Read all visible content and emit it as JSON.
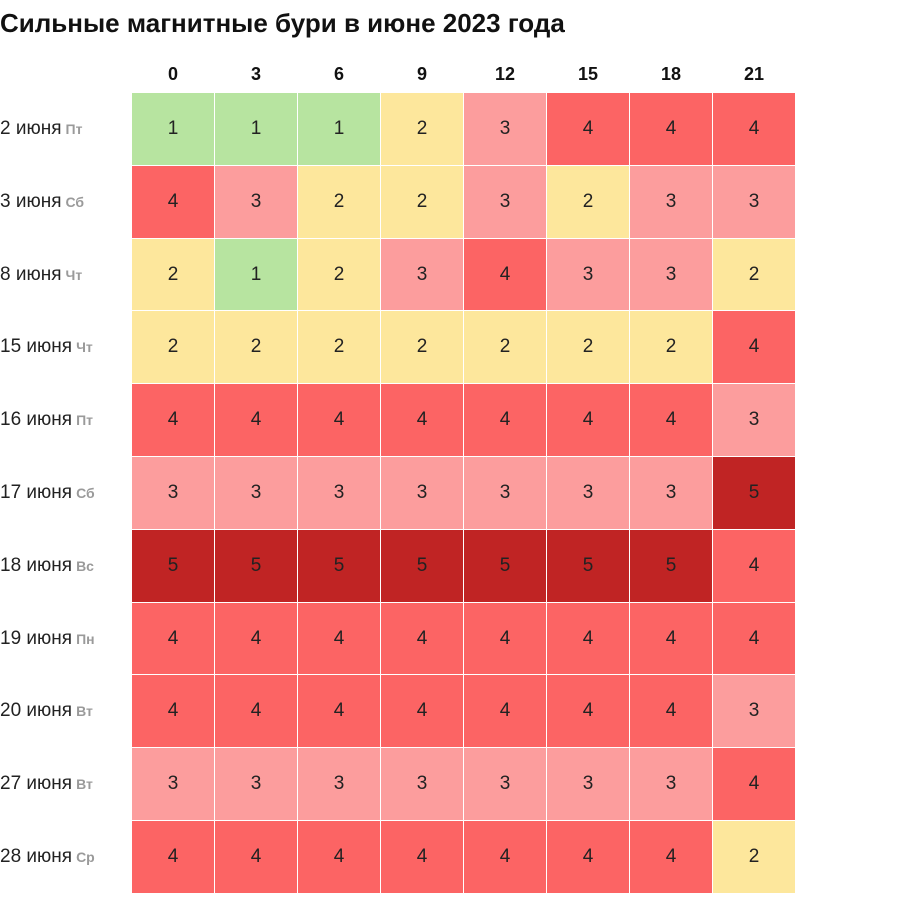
{
  "chart_data": {
    "type": "heatmap",
    "title": "Сильные магнитные бури в июне 2023 года",
    "x": [
      "0",
      "3",
      "6",
      "9",
      "12",
      "15",
      "18",
      "21"
    ],
    "rows": [
      {
        "date": "2 июня",
        "weekday": "Пт",
        "values": [
          1,
          1,
          1,
          2,
          3,
          4,
          4,
          4
        ]
      },
      {
        "date": "3 июня",
        "weekday": "Сб",
        "values": [
          4,
          3,
          2,
          2,
          3,
          2,
          3,
          3
        ]
      },
      {
        "date": "8 июня",
        "weekday": "Чт",
        "values": [
          2,
          1,
          2,
          3,
          4,
          3,
          3,
          2
        ]
      },
      {
        "date": "15 июня",
        "weekday": "Чт",
        "values": [
          2,
          2,
          2,
          2,
          2,
          2,
          2,
          4
        ]
      },
      {
        "date": "16 июня",
        "weekday": "Пт",
        "values": [
          4,
          4,
          4,
          4,
          4,
          4,
          4,
          3
        ]
      },
      {
        "date": "17 июня",
        "weekday": "Сб",
        "values": [
          3,
          3,
          3,
          3,
          3,
          3,
          3,
          5
        ]
      },
      {
        "date": "18 июня",
        "weekday": "Вс",
        "values": [
          5,
          5,
          5,
          5,
          5,
          5,
          5,
          4
        ]
      },
      {
        "date": "19 июня",
        "weekday": "Пн",
        "values": [
          4,
          4,
          4,
          4,
          4,
          4,
          4,
          4
        ]
      },
      {
        "date": "20 июня",
        "weekday": "Вт",
        "values": [
          4,
          4,
          4,
          4,
          4,
          4,
          4,
          3
        ]
      },
      {
        "date": "27 июня",
        "weekday": "Вт",
        "values": [
          3,
          3,
          3,
          3,
          3,
          3,
          3,
          4
        ]
      },
      {
        "date": "28 июня",
        "weekday": "Ср",
        "values": [
          4,
          4,
          4,
          4,
          4,
          4,
          4,
          2
        ]
      }
    ],
    "color_scale": {
      "1": "#b7e4a0",
      "2": "#fde79c",
      "3": "#fc9d9d",
      "4": "#fc6464",
      "5": "#c02424"
    }
  }
}
